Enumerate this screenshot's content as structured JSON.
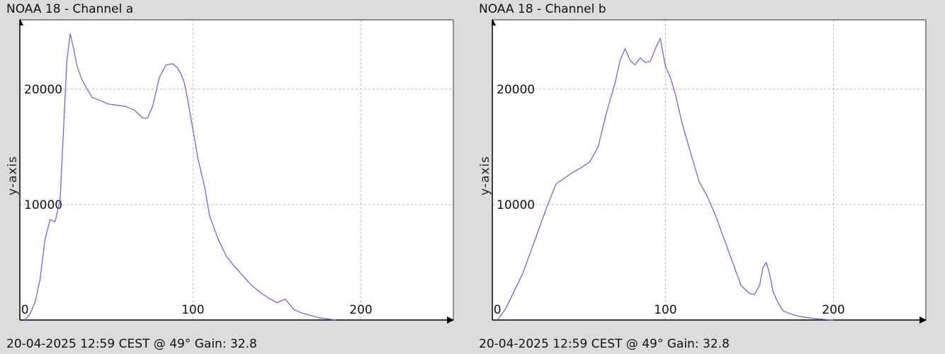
{
  "chart_data": [
    {
      "type": "line",
      "title": "NOAA 18 - Channel a",
      "footer": "20-04-2025 12:59 CEST @ 49° Gain: 32.8",
      "xlabel": "",
      "ylabel": "y-axis",
      "xlim": [
        -3,
        255
      ],
      "ylim": [
        0,
        26000
      ],
      "xticks": [
        0,
        100,
        200
      ],
      "yticks": [
        10000,
        20000
      ],
      "grid": true,
      "line_color": "#6a6ad8",
      "series": [
        {
          "x": [
            0,
            3,
            6,
            9,
            12,
            15,
            18,
            21,
            23,
            25,
            27,
            29,
            31,
            34,
            37,
            40,
            45,
            50,
            55,
            60,
            65,
            70,
            73,
            76,
            80,
            84,
            88,
            91,
            93,
            95,
            97,
            100,
            103,
            107,
            110,
            115,
            120,
            125,
            130,
            135,
            140,
            145,
            150,
            155,
            160,
            165,
            170,
            175,
            180,
            185
          ],
          "y": [
            0,
            500,
            1500,
            3500,
            7000,
            8700,
            8500,
            10500,
            16500,
            22500,
            24800,
            23500,
            22000,
            20800,
            20000,
            19300,
            19000,
            18700,
            18600,
            18500,
            18200,
            17500,
            17500,
            18500,
            21000,
            22100,
            22200,
            21800,
            21300,
            20500,
            19000,
            16500,
            14000,
            11500,
            9000,
            7000,
            5500,
            4600,
            3800,
            3000,
            2400,
            1900,
            1500,
            1800,
            900,
            600,
            400,
            200,
            100,
            0
          ]
        }
      ]
    },
    {
      "type": "line",
      "title": "NOAA 18 - Channel b",
      "footer": "20-04-2025 12:59 CEST @ 49° Gain: 32.8",
      "xlabel": "",
      "ylabel": "y-axis",
      "xlim": [
        -3,
        255
      ],
      "ylim": [
        0,
        26000
      ],
      "xticks": [
        0,
        100,
        200
      ],
      "yticks": [
        10000,
        20000
      ],
      "grid": true,
      "line_color": "#6a6ad8",
      "series": [
        {
          "x": [
            0,
            5,
            10,
            15,
            20,
            25,
            30,
            35,
            40,
            45,
            50,
            55,
            60,
            65,
            70,
            73,
            76,
            79,
            82,
            85,
            88,
            91,
            94,
            97,
            100,
            103,
            106,
            110,
            115,
            120,
            125,
            130,
            135,
            140,
            145,
            150,
            153,
            156,
            158,
            160,
            162,
            164,
            167,
            170,
            175,
            180,
            185,
            190,
            195,
            200
          ],
          "y": [
            0,
            1000,
            2500,
            4000,
            6000,
            8000,
            10000,
            11800,
            12300,
            12800,
            13200,
            13700,
            15000,
            18000,
            20500,
            22500,
            23500,
            22500,
            22100,
            22700,
            22300,
            22400,
            23500,
            24400,
            22000,
            21000,
            19500,
            17000,
            14500,
            12000,
            10700,
            9000,
            7000,
            5000,
            3000,
            2300,
            2200,
            3000,
            4500,
            5000,
            4000,
            2500,
            1500,
            800,
            500,
            300,
            200,
            100,
            50,
            0
          ]
        }
      ]
    }
  ]
}
